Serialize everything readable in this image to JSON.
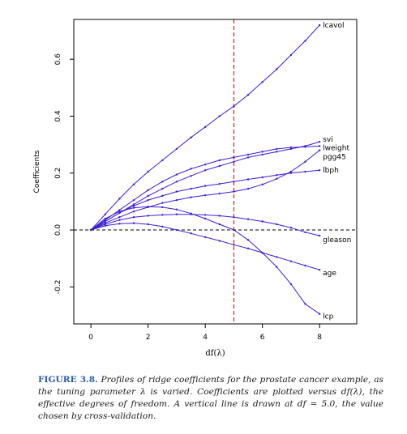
{
  "chart_data": {
    "type": "line",
    "title": "",
    "xlabel": "df(λ)",
    "ylabel": "Coefficients",
    "xlim": [
      -0.6,
      9.3
    ],
    "ylim": [
      -0.33,
      0.74
    ],
    "x_ticks": [
      "0",
      "2",
      "4",
      "6",
      "8"
    ],
    "y_ticks": [
      "-0.2",
      "0.0",
      "0.2",
      "0.4",
      "0.6"
    ],
    "reference_hline": 0,
    "reference_vline": 5.0,
    "colors": {
      "series": "#3b1fd6",
      "vline": "#c00000",
      "hline": "#000000",
      "axis": "#000000"
    },
    "series": [
      {
        "name": "lcavol",
        "x": [
          0,
          0.5,
          1,
          1.5,
          2,
          2.5,
          3,
          3.5,
          4,
          4.5,
          5,
          5.5,
          6,
          6.5,
          7,
          7.5,
          8
        ],
        "values": [
          0,
          0.055,
          0.11,
          0.16,
          0.205,
          0.245,
          0.285,
          0.325,
          0.362,
          0.4,
          0.435,
          0.475,
          0.52,
          0.565,
          0.615,
          0.665,
          0.72
        ]
      },
      {
        "name": "svi",
        "x": [
          0,
          0.5,
          1,
          1.5,
          2,
          2.5,
          3,
          3.5,
          4,
          4.5,
          5,
          5.5,
          6,
          6.5,
          7,
          7.5,
          8
        ],
        "values": [
          0,
          0.03,
          0.06,
          0.09,
          0.12,
          0.145,
          0.17,
          0.19,
          0.21,
          0.225,
          0.24,
          0.255,
          0.265,
          0.275,
          0.285,
          0.295,
          0.31
        ]
      },
      {
        "name": "lweight",
        "x": [
          0,
          0.5,
          1,
          1.5,
          2,
          2.5,
          3,
          3.5,
          4,
          4.5,
          5,
          5.5,
          6,
          6.5,
          7,
          7.5,
          8
        ],
        "values": [
          0,
          0.035,
          0.07,
          0.105,
          0.14,
          0.17,
          0.195,
          0.215,
          0.23,
          0.245,
          0.255,
          0.265,
          0.275,
          0.285,
          0.29,
          0.292,
          0.295
        ]
      },
      {
        "name": "pgg45",
        "x": [
          0,
          0.5,
          1,
          1.5,
          2,
          2.5,
          3,
          3.5,
          4,
          4.5,
          5,
          5.5,
          6,
          6.5,
          7,
          7.5,
          8
        ],
        "values": [
          0,
          0.025,
          0.045,
          0.065,
          0.08,
          0.095,
          0.105,
          0.115,
          0.122,
          0.128,
          0.135,
          0.145,
          0.16,
          0.18,
          0.205,
          0.24,
          0.28
        ]
      },
      {
        "name": "lbph",
        "x": [
          0,
          0.5,
          1,
          1.5,
          2,
          2.5,
          3,
          3.5,
          4,
          4.5,
          5,
          5.5,
          6,
          6.5,
          7,
          7.5,
          8
        ],
        "values": [
          0,
          0.03,
          0.06,
          0.085,
          0.105,
          0.12,
          0.135,
          0.145,
          0.155,
          0.162,
          0.17,
          0.178,
          0.185,
          0.193,
          0.2,
          0.205,
          0.21
        ]
      },
      {
        "name": "gleason",
        "x": [
          0,
          0.5,
          1,
          1.5,
          2,
          2.5,
          3,
          3.5,
          4,
          4.5,
          5,
          5.5,
          6,
          6.5,
          7,
          7.5,
          8
        ],
        "values": [
          0,
          0.02,
          0.035,
          0.045,
          0.05,
          0.053,
          0.055,
          0.055,
          0.053,
          0.05,
          0.045,
          0.038,
          0.03,
          0.02,
          0.008,
          -0.008,
          -0.02
        ]
      },
      {
        "name": "age",
        "x": [
          0,
          0.5,
          1,
          1.5,
          2,
          2.5,
          3,
          3.5,
          4,
          4.5,
          5,
          5.5,
          6,
          6.5,
          7,
          7.5,
          8
        ],
        "values": [
          0,
          0.015,
          0.022,
          0.024,
          0.02,
          0.012,
          0,
          -0.012,
          -0.025,
          -0.038,
          -0.052,
          -0.065,
          -0.08,
          -0.095,
          -0.11,
          -0.125,
          -0.14
        ]
      },
      {
        "name": "lcp",
        "x": [
          0,
          0.5,
          1,
          1.5,
          2,
          2.5,
          3,
          3.5,
          4,
          4.5,
          5,
          5.5,
          6,
          6.5,
          7,
          7.5,
          8
        ],
        "values": [
          0,
          0.04,
          0.065,
          0.078,
          0.082,
          0.08,
          0.072,
          0.058,
          0.04,
          0.02,
          0,
          -0.035,
          -0.08,
          -0.13,
          -0.19,
          -0.26,
          -0.295
        ]
      }
    ]
  },
  "caption": {
    "label": "FIGURE 3.8.",
    "text": "Profiles of ridge coefficients for the prostate cancer example, as the tuning parameter λ is varied. Coefficients are plotted versus df(λ), the effective degrees of freedom. A vertical line is drawn at df = 5.0, the value chosen by cross-validation."
  }
}
